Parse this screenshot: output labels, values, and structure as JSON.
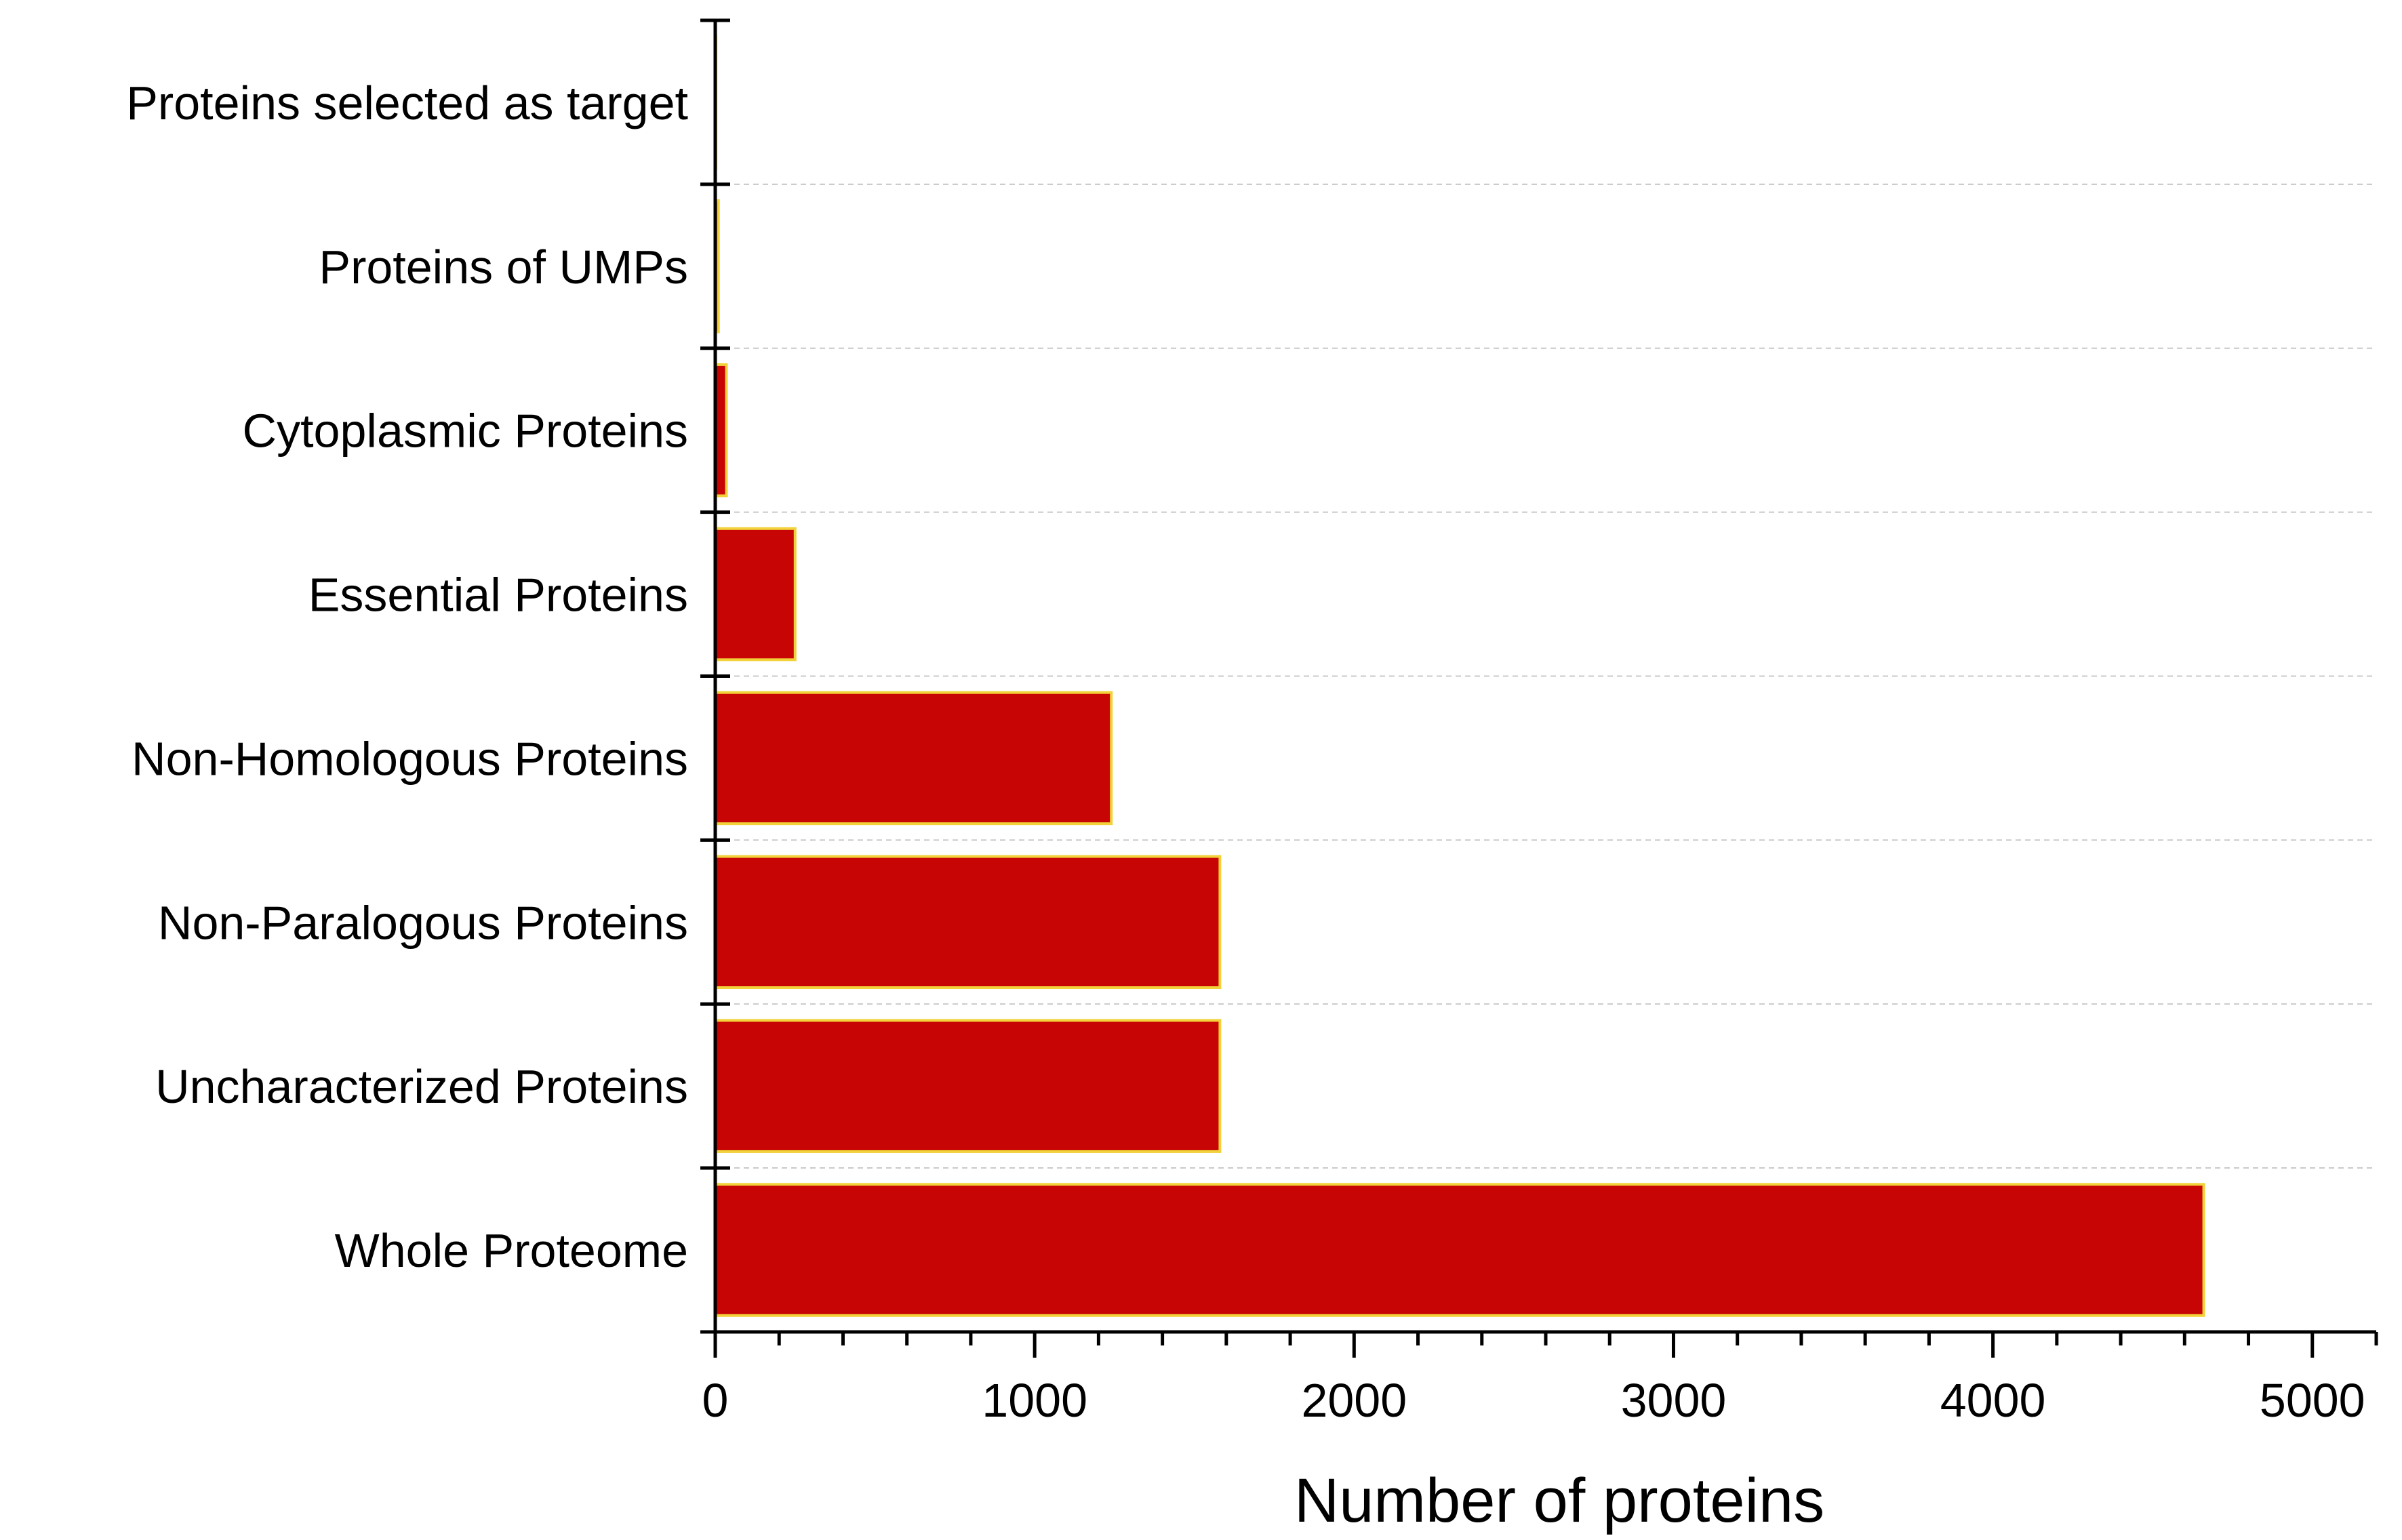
{
  "chart_data": {
    "type": "bar",
    "orientation": "horizontal",
    "categories": [
      "Proteins selected as target",
      "Proteins of UMPs",
      "Cytoplasmic Proteins",
      "Essential Proteins",
      "Non-Homologous Proteins",
      "Non-Paralogous Proteins",
      "Uncharacterized Proteins",
      "Whole Proteome"
    ],
    "values": [
      2,
      10,
      35,
      250,
      1240,
      1580,
      1580,
      4660
    ],
    "xlabel": "Number of proteins",
    "ylabel": "",
    "xlim": [
      0,
      5200
    ],
    "xticks": [
      0,
      1000,
      2000,
      3000,
      4000,
      5000
    ],
    "xtick_labels": [
      "0",
      "1000",
      "2000",
      "3000",
      "4000",
      "5000"
    ],
    "grid": "horizontal dashed separators",
    "legend": "none",
    "colors": {
      "bar_fill": "#c80505",
      "bar_edge": "#f2d23a",
      "axis": "#000000",
      "grid": "#c8c8c8"
    }
  }
}
